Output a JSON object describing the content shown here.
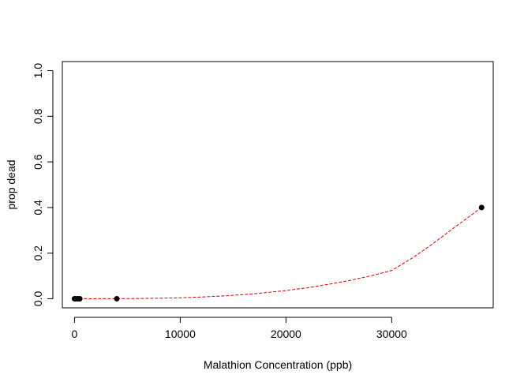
{
  "chart_data": {
    "type": "scatter",
    "title": "",
    "xlabel": "Malathion Concentration (ppb)",
    "ylabel": "prop dead",
    "xlim": [
      -1150,
      39600
    ],
    "ylim": [
      -0.04,
      1.04
    ],
    "xticks": [
      0,
      10000,
      20000,
      30000
    ],
    "yticks": [
      0.0,
      0.2,
      0.4,
      0.6,
      0.8,
      1.0
    ],
    "xtick_labels": [
      "0",
      "10000",
      "20000",
      "30000"
    ],
    "ytick_labels": [
      "0.0",
      "0.2",
      "0.4",
      "0.6",
      "0.8",
      "1.0"
    ],
    "grid": false,
    "legend": "none",
    "series": [
      {
        "kind": "points",
        "color": "#000000",
        "x": [
          0,
          100,
          300,
          500,
          4000,
          38500
        ],
        "y": [
          0,
          0,
          0,
          0,
          0,
          0.4
        ]
      },
      {
        "kind": "fitted-curve",
        "color": "#cc0000",
        "style": "dashed",
        "x": [
          0,
          2000,
          4000,
          6000,
          8000,
          10000,
          12000,
          14000,
          16000,
          18000,
          20000,
          22000,
          24000,
          26000,
          28000,
          30000,
          32000,
          34000,
          36000,
          38500
        ],
        "y": [
          0,
          0,
          0.0003,
          0.0009,
          0.0022,
          0.0043,
          0.0075,
          0.012,
          0.018,
          0.026,
          0.036,
          0.048,
          0.063,
          0.08,
          0.1,
          0.124,
          0.18,
          0.245,
          0.315,
          0.4
        ]
      }
    ]
  }
}
